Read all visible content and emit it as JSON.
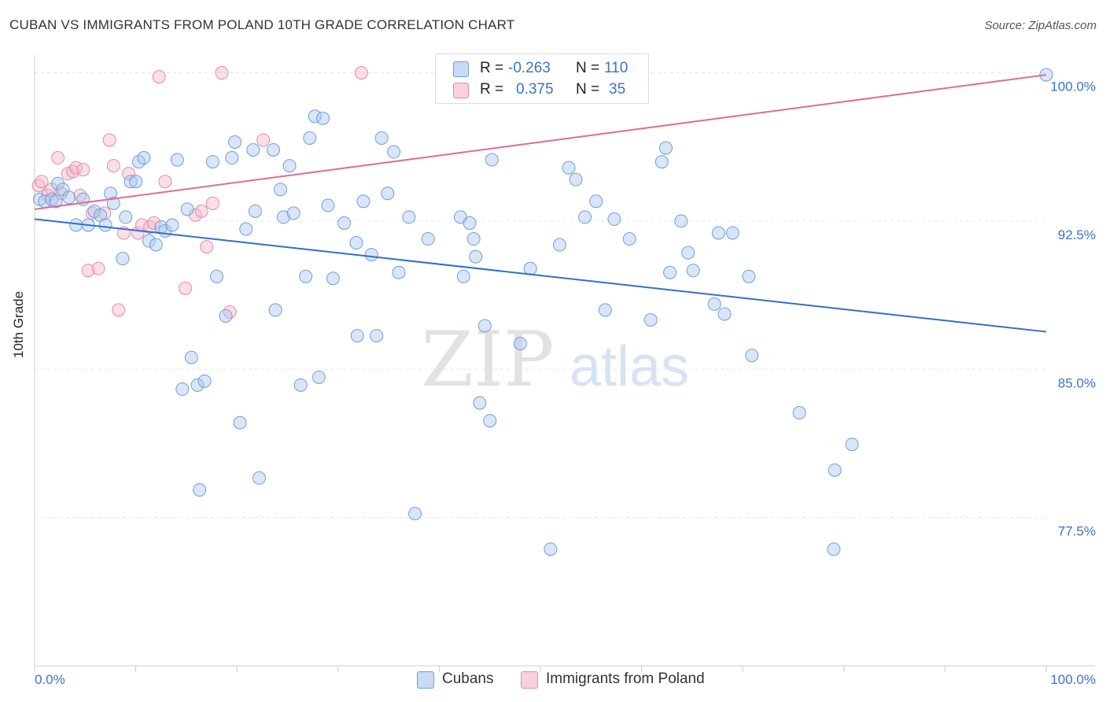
{
  "title": "CUBAN VS IMMIGRANTS FROM POLAND 10TH GRADE CORRELATION CHART",
  "source": "Source: ZipAtlas.com",
  "watermark": {
    "zip": "ZIP",
    "atlas": "atlas"
  },
  "legend": {
    "rows": [
      {
        "r_label": "R =",
        "r_value": "-0.263",
        "n_label": "N =",
        "n_value": "110",
        "color": "#a9c8f0"
      },
      {
        "r_label": "R =",
        "r_value": "0.375",
        "n_label": "N =",
        "n_value": "35",
        "color": "#f5b8cb"
      }
    ]
  },
  "bottom_legend": [
    {
      "label": "Cubans",
      "color": "#a9c8f0"
    },
    {
      "label": "Immigrants from Poland",
      "color": "#f5b8cb"
    }
  ],
  "chart_data": {
    "type": "scatter",
    "title": "CUBAN VS IMMIGRANTS FROM POLAND 10TH GRADE CORRELATION CHART",
    "xlabel": "",
    "ylabel": "10th Grade",
    "xlim": [
      0,
      100
    ],
    "ylim": [
      70,
      100.5
    ],
    "x_tick_labels": [
      "0.0%",
      "100.0%"
    ],
    "y_ticks": [
      77.5,
      85.0,
      92.5,
      100.0
    ],
    "y_tick_labels": [
      "77.5%",
      "85.0%",
      "92.5%",
      "100.0%"
    ],
    "grid": true,
    "colors": {
      "cubans_fill": "#a9c8f0",
      "cubans_stroke": "#6f9fdc",
      "cubans_line": "#2f6fd0",
      "poland_fill": "#f5b8cb",
      "poland_stroke": "#e88aa8",
      "poland_line": "#e06a94",
      "tick_label": "#3b74c9"
    },
    "series": [
      {
        "name": "Cubans",
        "r": -0.263,
        "n": 110,
        "trend": {
          "x": [
            0,
            100
          ],
          "y": [
            92.6,
            86.9
          ]
        },
        "points": [
          [
            0.5,
            93.6
          ],
          [
            1.0,
            93.5
          ],
          [
            1.7,
            93.6
          ],
          [
            2.3,
            94.4
          ],
          [
            2.8,
            94.1
          ],
          [
            3.4,
            93.7
          ],
          [
            4.1,
            92.3
          ],
          [
            4.8,
            93.6
          ],
          [
            5.3,
            92.3
          ],
          [
            5.9,
            93.0
          ],
          [
            6.5,
            92.8
          ],
          [
            7.0,
            92.3
          ],
          [
            7.5,
            93.9
          ],
          [
            7.8,
            93.4
          ],
          [
            8.7,
            90.6
          ],
          [
            9.0,
            92.7
          ],
          [
            9.5,
            94.5
          ],
          [
            10.0,
            94.5
          ],
          [
            10.3,
            95.5
          ],
          [
            10.8,
            95.7
          ],
          [
            11.3,
            91.5
          ],
          [
            12.0,
            91.3
          ],
          [
            12.5,
            92.2
          ],
          [
            12.9,
            92.0
          ],
          [
            13.6,
            92.3
          ],
          [
            14.1,
            95.6
          ],
          [
            14.6,
            84.0
          ],
          [
            15.1,
            93.1
          ],
          [
            15.5,
            85.6
          ],
          [
            16.1,
            84.2
          ],
          [
            16.3,
            78.9
          ],
          [
            16.8,
            84.4
          ],
          [
            17.6,
            95.5
          ],
          [
            18.0,
            89.7
          ],
          [
            18.9,
            87.7
          ],
          [
            19.5,
            95.7
          ],
          [
            19.8,
            96.5
          ],
          [
            20.3,
            82.3
          ],
          [
            20.9,
            92.1
          ],
          [
            21.6,
            96.1
          ],
          [
            21.8,
            93.0
          ],
          [
            22.2,
            79.5
          ],
          [
            23.6,
            96.1
          ],
          [
            23.8,
            88.0
          ],
          [
            24.3,
            94.1
          ],
          [
            24.6,
            92.7
          ],
          [
            25.2,
            95.3
          ],
          [
            25.6,
            92.9
          ],
          [
            26.3,
            84.2
          ],
          [
            26.8,
            89.7
          ],
          [
            27.2,
            96.7
          ],
          [
            27.7,
            97.8
          ],
          [
            28.1,
            84.6
          ],
          [
            28.5,
            97.7
          ],
          [
            29.0,
            93.3
          ],
          [
            29.5,
            89.6
          ],
          [
            30.6,
            92.4
          ],
          [
            31.8,
            91.4
          ],
          [
            31.9,
            86.7
          ],
          [
            32.5,
            93.5
          ],
          [
            33.3,
            90.8
          ],
          [
            33.8,
            86.7
          ],
          [
            34.3,
            96.7
          ],
          [
            34.9,
            93.9
          ],
          [
            35.5,
            96.0
          ],
          [
            36.0,
            89.9
          ],
          [
            37.0,
            92.7
          ],
          [
            37.6,
            77.7
          ],
          [
            38.9,
            91.6
          ],
          [
            42.1,
            92.7
          ],
          [
            42.4,
            89.7
          ],
          [
            43.0,
            92.4
          ],
          [
            43.4,
            91.6
          ],
          [
            43.6,
            90.7
          ],
          [
            44.0,
            83.3
          ],
          [
            44.5,
            87.2
          ],
          [
            45.0,
            82.4
          ],
          [
            45.2,
            95.6
          ],
          [
            48.0,
            86.3
          ],
          [
            49.0,
            90.1
          ],
          [
            51.0,
            75.9
          ],
          [
            51.9,
            91.3
          ],
          [
            52.8,
            95.2
          ],
          [
            53.5,
            94.6
          ],
          [
            54.4,
            92.7
          ],
          [
            55.5,
            93.5
          ],
          [
            56.4,
            88.0
          ],
          [
            57.3,
            92.6
          ],
          [
            58.8,
            91.6
          ],
          [
            60.9,
            87.5
          ],
          [
            62.0,
            95.5
          ],
          [
            62.4,
            96.2
          ],
          [
            62.8,
            89.9
          ],
          [
            63.9,
            92.5
          ],
          [
            64.6,
            90.9
          ],
          [
            65.1,
            90.0
          ],
          [
            67.2,
            88.3
          ],
          [
            67.6,
            91.9
          ],
          [
            68.2,
            87.8
          ],
          [
            69.0,
            91.9
          ],
          [
            70.6,
            89.7
          ],
          [
            70.9,
            85.7
          ],
          [
            75.6,
            82.8
          ],
          [
            79.1,
            79.9
          ],
          [
            80.8,
            81.2
          ],
          [
            79.0,
            75.9
          ],
          [
            100,
            99.9
          ],
          [
            2.1,
            93.5
          ]
        ]
      },
      {
        "name": "Immigrants from Poland",
        "r": 0.375,
        "n": 35,
        "trend": {
          "x": [
            0,
            100
          ],
          "y": [
            93.1,
            99.9
          ]
        },
        "points": [
          [
            0.4,
            94.3
          ],
          [
            0.7,
            94.5
          ],
          [
            1.3,
            93.8
          ],
          [
            1.7,
            94.1
          ],
          [
            2.3,
            95.7
          ],
          [
            2.6,
            93.9
          ],
          [
            3.3,
            94.9
          ],
          [
            3.8,
            95.0
          ],
          [
            4.1,
            95.2
          ],
          [
            4.5,
            93.8
          ],
          [
            4.8,
            95.1
          ],
          [
            5.3,
            90.0
          ],
          [
            5.7,
            92.9
          ],
          [
            6.3,
            90.1
          ],
          [
            6.9,
            92.9
          ],
          [
            7.4,
            96.6
          ],
          [
            7.8,
            95.3
          ],
          [
            8.3,
            88.0
          ],
          [
            8.8,
            91.9
          ],
          [
            9.3,
            94.9
          ],
          [
            10.2,
            91.9
          ],
          [
            10.6,
            92.3
          ],
          [
            11.4,
            92.2
          ],
          [
            11.8,
            92.4
          ],
          [
            12.3,
            99.8
          ],
          [
            12.9,
            94.5
          ],
          [
            14.9,
            89.1
          ],
          [
            15.9,
            92.8
          ],
          [
            16.5,
            93.0
          ],
          [
            17.0,
            91.2
          ],
          [
            17.6,
            93.4
          ],
          [
            18.5,
            100.0
          ],
          [
            19.3,
            87.9
          ],
          [
            22.6,
            96.6
          ],
          [
            32.3,
            100.0
          ]
        ]
      }
    ]
  }
}
